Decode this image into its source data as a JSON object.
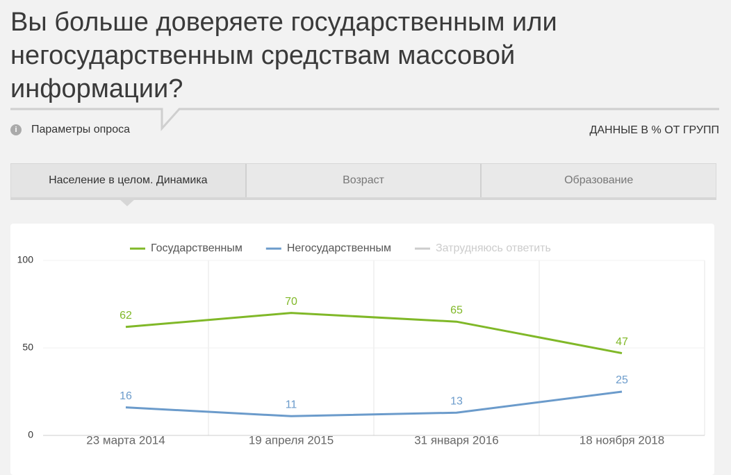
{
  "header": {
    "title": "Вы больше доверяете государственным или негосударственным средствам массовой информации?",
    "survey_params": "Параметры опроса",
    "data_note": "ДАННЫЕ В % ОТ ГРУПП"
  },
  "tabs": {
    "items": [
      "Население в целом. Динамика",
      "Возраст",
      "Образование"
    ],
    "active": 0
  },
  "chart_data": {
    "type": "line",
    "categories": [
      "23 марта 2014",
      "19 апреля 2015",
      "31 января 2016",
      "18 ноября 2018"
    ],
    "series": [
      {
        "name": "Государственным",
        "color": "#80b828",
        "values": [
          62,
          70,
          65,
          47
        ],
        "visible": true
      },
      {
        "name": "Негосударственным",
        "color": "#6b9bcb",
        "values": [
          16,
          11,
          13,
          25
        ],
        "visible": true
      },
      {
        "name": "Затрудняюсь ответить",
        "color": "#cccccc",
        "values": [
          null,
          null,
          null,
          null
        ],
        "visible": false
      }
    ],
    "ylim": [
      0,
      100
    ],
    "yticks": [
      0,
      50,
      100
    ],
    "grid": true
  }
}
